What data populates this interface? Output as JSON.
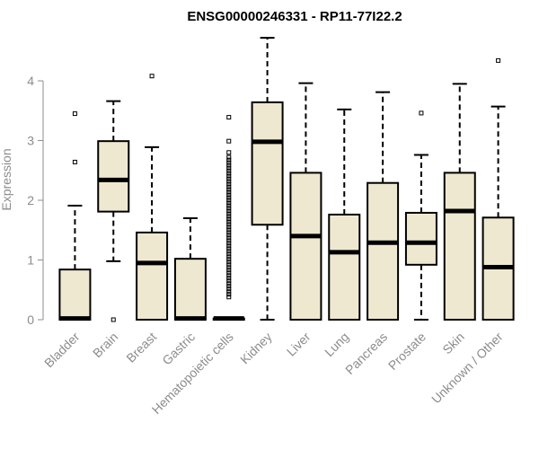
{
  "chart_data": {
    "type": "boxplot",
    "title": "ENSG00000246331 - RP11-77I22.2",
    "ylabel": "Expression",
    "xlabel": "",
    "ylim": [
      0,
      4.7
    ],
    "yticks": [
      0,
      1,
      2,
      3,
      4
    ],
    "grid": false,
    "box_fill": "#efe8d0",
    "box_stroke": "#000000",
    "axis_color": "#8c8c8c",
    "categories": [
      "Bladder",
      "Brain",
      "Breast",
      "Gastric",
      "Hematopoietic cells",
      "Kidney",
      "Liver",
      "Lung",
      "Pancreas",
      "Prostate",
      "Skin",
      "Unknown / Other"
    ],
    "boxes": [
      {
        "min": 0,
        "q1": 0,
        "median": 0.02,
        "q3": 0.84,
        "max": 1.91,
        "outliers": [
          2.64,
          3.45
        ]
      },
      {
        "min": 0.98,
        "q1": 1.81,
        "median": 2.34,
        "q3": 2.99,
        "max": 3.66,
        "outliers": [
          0.0
        ]
      },
      {
        "min": 0,
        "q1": 0,
        "median": 0.95,
        "q3": 1.46,
        "max": 2.89,
        "outliers": [
          4.08
        ]
      },
      {
        "min": 0,
        "q1": 0,
        "median": 0.02,
        "q3": 1.02,
        "max": 1.7,
        "outliers": []
      },
      {
        "min": 0,
        "q1": 0,
        "median": 0.02,
        "q3": 0.02,
        "max": 0.02,
        "outliers_band": [
          0.38,
          2.72
        ],
        "outliers": [
          2.8,
          2.99,
          3.39
        ]
      },
      {
        "min": 0,
        "q1": 1.59,
        "median": 2.98,
        "q3": 3.64,
        "max": 4.72,
        "outliers": []
      },
      {
        "min": 0,
        "q1": 0,
        "median": 1.4,
        "q3": 2.46,
        "max": 3.96,
        "outliers": []
      },
      {
        "min": 0,
        "q1": 0,
        "median": 1.13,
        "q3": 1.76,
        "max": 3.52,
        "outliers": []
      },
      {
        "min": 0,
        "q1": 0,
        "median": 1.29,
        "q3": 2.29,
        "max": 3.81,
        "outliers": []
      },
      {
        "min": 0,
        "q1": 0.92,
        "median": 1.29,
        "q3": 1.79,
        "max": 2.76,
        "outliers": [
          3.46
        ]
      },
      {
        "min": 0,
        "q1": 0,
        "median": 1.82,
        "q3": 2.46,
        "max": 3.95,
        "outliers": []
      },
      {
        "min": 0,
        "q1": 0,
        "median": 0.88,
        "q3": 1.71,
        "max": 3.57,
        "outliers": [
          4.34
        ]
      }
    ]
  }
}
